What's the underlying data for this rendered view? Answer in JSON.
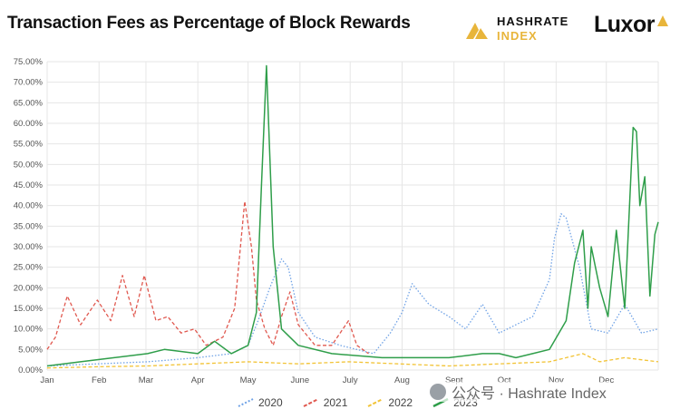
{
  "title": "Transaction Fees as Percentage of Block Rewards",
  "logos": {
    "hashrate_line1": "HASHRATE",
    "hashrate_line2": "INDEX",
    "luxor": "Luxor"
  },
  "watermark": "公众号 · Hashrate Index",
  "colors": {
    "2020": "#6fa2e6",
    "2021": "#e0584f",
    "2022": "#f2c335",
    "2023": "#2f9e4a"
  },
  "chart_data": {
    "type": "line",
    "title": "Transaction Fees as Percentage of Block Rewards",
    "xlabel": "",
    "ylabel": "",
    "x_range_days": [
      0,
      365
    ],
    "ylim": [
      0,
      75
    ],
    "y_ticks": [
      "0.00%",
      "5.00%",
      "10.00%",
      "15.00%",
      "20.00%",
      "25.00%",
      "30.00%",
      "35.00%",
      "40.00%",
      "45.00%",
      "50.00%",
      "55.00%",
      "60.00%",
      "65.00%",
      "70.00%",
      "75.00%"
    ],
    "x_tick_labels": [
      "Jan",
      "Feb",
      "Mar",
      "Apr",
      "May",
      "June",
      "July",
      "Aug",
      "Sept",
      "Oct",
      "Nov",
      "Dec"
    ],
    "x_tick_days": [
      0,
      31,
      59,
      90,
      120,
      151,
      181,
      212,
      243,
      273,
      304,
      334
    ],
    "grid": true,
    "legend_position": "bottom",
    "series": [
      {
        "name": "2020",
        "style": "dotted",
        "x": [
          0,
          30,
          60,
          90,
          110,
          120,
          126,
          133,
          140,
          144,
          150,
          160,
          175,
          195,
          205,
          212,
          218,
          228,
          240,
          250,
          260,
          270,
          280,
          290,
          300,
          303,
          307,
          310,
          318,
          325,
          335,
          345,
          355,
          365
        ],
        "values": [
          1,
          1.5,
          2,
          3,
          4,
          6,
          12,
          20,
          27,
          25,
          14,
          8,
          6,
          4,
          9,
          14,
          21,
          16,
          13,
          10,
          16,
          9,
          11,
          13,
          22,
          32,
          38,
          37,
          25,
          10,
          9,
          16,
          9,
          10
        ]
      },
      {
        "name": "2021",
        "style": "dashed",
        "x": [
          0,
          5,
          12,
          20,
          30,
          38,
          45,
          52,
          58,
          65,
          72,
          80,
          88,
          95,
          105,
          112,
          118,
          122,
          125,
          130,
          135,
          140,
          145,
          150,
          160,
          170,
          180,
          185,
          192
        ],
        "values": [
          5,
          8,
          18,
          11,
          17,
          12,
          23,
          13,
          23,
          12,
          13,
          9,
          10,
          6,
          8,
          15,
          41,
          30,
          17,
          10,
          6,
          13,
          19,
          11,
          6,
          6,
          12,
          6,
          4
        ]
      },
      {
        "name": "2022",
        "style": "dashed",
        "x": [
          0,
          30,
          60,
          90,
          120,
          150,
          180,
          210,
          240,
          270,
          300,
          320,
          330,
          345,
          355,
          365
        ],
        "values": [
          0.5,
          0.8,
          1,
          1.5,
          2,
          1.5,
          2,
          1.5,
          1,
          1.5,
          2,
          4,
          2,
          3,
          2.5,
          2
        ]
      },
      {
        "name": "2023",
        "style": "solid",
        "x": [
          0,
          20,
          40,
          60,
          70,
          90,
          100,
          110,
          120,
          125,
          128,
          131,
          135,
          140,
          150,
          170,
          200,
          220,
          240,
          260,
          270,
          280,
          290,
          300,
          310,
          315,
          320,
          323,
          325,
          330,
          335,
          340,
          345,
          350,
          352,
          354,
          357,
          360,
          363,
          365
        ],
        "values": [
          1,
          2,
          3,
          4,
          5,
          4,
          7,
          4,
          6,
          14,
          45,
          74,
          30,
          10,
          6,
          4,
          3,
          3,
          3,
          4,
          4,
          3,
          4,
          5,
          12,
          26,
          34,
          15,
          30,
          20,
          13,
          34,
          15,
          59,
          58,
          40,
          47,
          18,
          33,
          36
        ]
      }
    ]
  }
}
